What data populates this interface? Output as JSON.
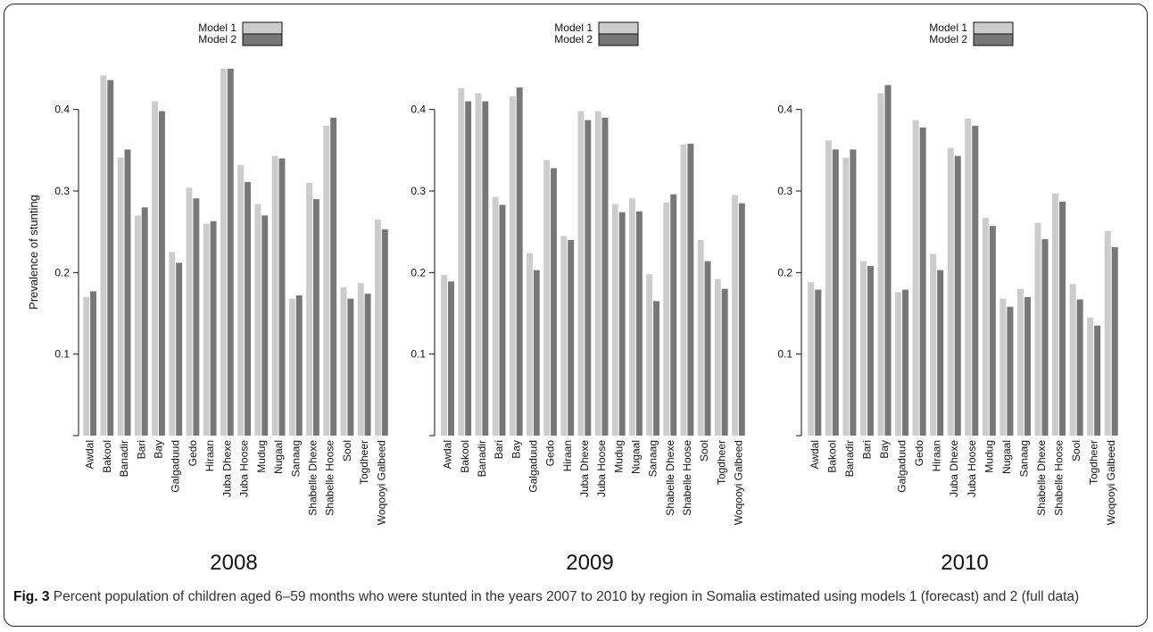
{
  "caption": {
    "label": "Fig. 3",
    "text": "Percent population of children aged 6–59 months who were stunted in the years 2007 to 2010 by region in Somalia estimated using models 1 (forecast) and 2 (full data)"
  },
  "colors": {
    "model1": "#cccccc",
    "model2": "#777777",
    "axis": "#111111"
  },
  "chart_data": [
    {
      "type": "bar",
      "title": "2008",
      "ylabel": "Prevalence of stunting",
      "ylim": [
        0.0,
        0.45
      ],
      "yticks": [
        "0.1",
        "0.2",
        "0.3",
        "0.4"
      ],
      "legend_position": "top-center",
      "categories": [
        "Awdal",
        "Bakool",
        "Banadir",
        "Bari",
        "Bay",
        "Galgaduud",
        "Gedo",
        "Hiraan",
        "Juba Dhexe",
        "Juba Hoose",
        "Mudug",
        "Nugaal",
        "Sanaag",
        "Shabelle Dhexe",
        "Shabelle Hoose",
        "Sool",
        "Togdheer",
        "Woqooyi Galbeed"
      ],
      "series": [
        {
          "name": "Model 1",
          "values": [
            0.17,
            0.442,
            0.341,
            0.27,
            0.41,
            0.225,
            0.304,
            0.26,
            0.45,
            0.332,
            0.284,
            0.343,
            0.168,
            0.31,
            0.38,
            0.182,
            0.187,
            0.265
          ]
        },
        {
          "name": "Model 2",
          "values": [
            0.177,
            0.436,
            0.351,
            0.28,
            0.398,
            0.212,
            0.291,
            0.263,
            0.45,
            0.311,
            0.27,
            0.34,
            0.172,
            0.29,
            0.39,
            0.168,
            0.174,
            0.253
          ]
        }
      ]
    },
    {
      "type": "bar",
      "title": "2009",
      "ylabel": "",
      "ylim": [
        0.0,
        0.45
      ],
      "yticks": [
        "0.1",
        "0.2",
        "0.3",
        "0.4"
      ],
      "legend_position": "top-center",
      "categories": [
        "Awdal",
        "Bakool",
        "Banadir",
        "Bari",
        "Bay",
        "Galgaduud",
        "Gedo",
        "Hiraan",
        "Juba Dhexe",
        "Juba Hoose",
        "Mudug",
        "Nugaal",
        "Sanaag",
        "Shabelle Dhexe",
        "Shabelle Hoose",
        "Sool",
        "Togdheer",
        "Woqooyi Galbeed"
      ],
      "series": [
        {
          "name": "Model 1",
          "values": [
            0.197,
            0.426,
            0.42,
            0.293,
            0.416,
            0.224,
            0.338,
            0.245,
            0.398,
            0.398,
            0.284,
            0.291,
            0.198,
            0.286,
            0.357,
            0.24,
            0.192,
            0.295
          ]
        },
        {
          "name": "Model 2",
          "values": [
            0.189,
            0.41,
            0.41,
            0.283,
            0.427,
            0.203,
            0.328,
            0.24,
            0.387,
            0.39,
            0.274,
            0.275,
            0.165,
            0.296,
            0.358,
            0.214,
            0.18,
            0.285
          ]
        }
      ]
    },
    {
      "type": "bar",
      "title": "2010",
      "ylabel": "",
      "ylim": [
        0.0,
        0.45
      ],
      "yticks": [
        "0.1",
        "0.2",
        "0.3",
        "0.4"
      ],
      "legend_position": "top-center",
      "categories": [
        "Awdal",
        "Bakool",
        "Banadir",
        "Bari",
        "Bay",
        "Galgaduud",
        "Gedo",
        "Hiraan",
        "Juba Dhexe",
        "Juba Hoose",
        "Mudug",
        "Nugaal",
        "Sanaag",
        "Shabelle Dhexe",
        "Shabelle Hoose",
        "Sool",
        "Togdheer",
        "Woqooyi Galbeed"
      ],
      "series": [
        {
          "name": "Model 1",
          "values": [
            0.188,
            0.362,
            0.341,
            0.214,
            0.42,
            0.176,
            0.387,
            0.223,
            0.353,
            0.389,
            0.267,
            0.168,
            0.18,
            0.261,
            0.297,
            0.186,
            0.145,
            0.251
          ]
        },
        {
          "name": "Model 2",
          "values": [
            0.179,
            0.351,
            0.351,
            0.208,
            0.43,
            0.179,
            0.378,
            0.203,
            0.343,
            0.38,
            0.257,
            0.158,
            0.17,
            0.241,
            0.287,
            0.167,
            0.135,
            0.231
          ]
        }
      ]
    }
  ]
}
